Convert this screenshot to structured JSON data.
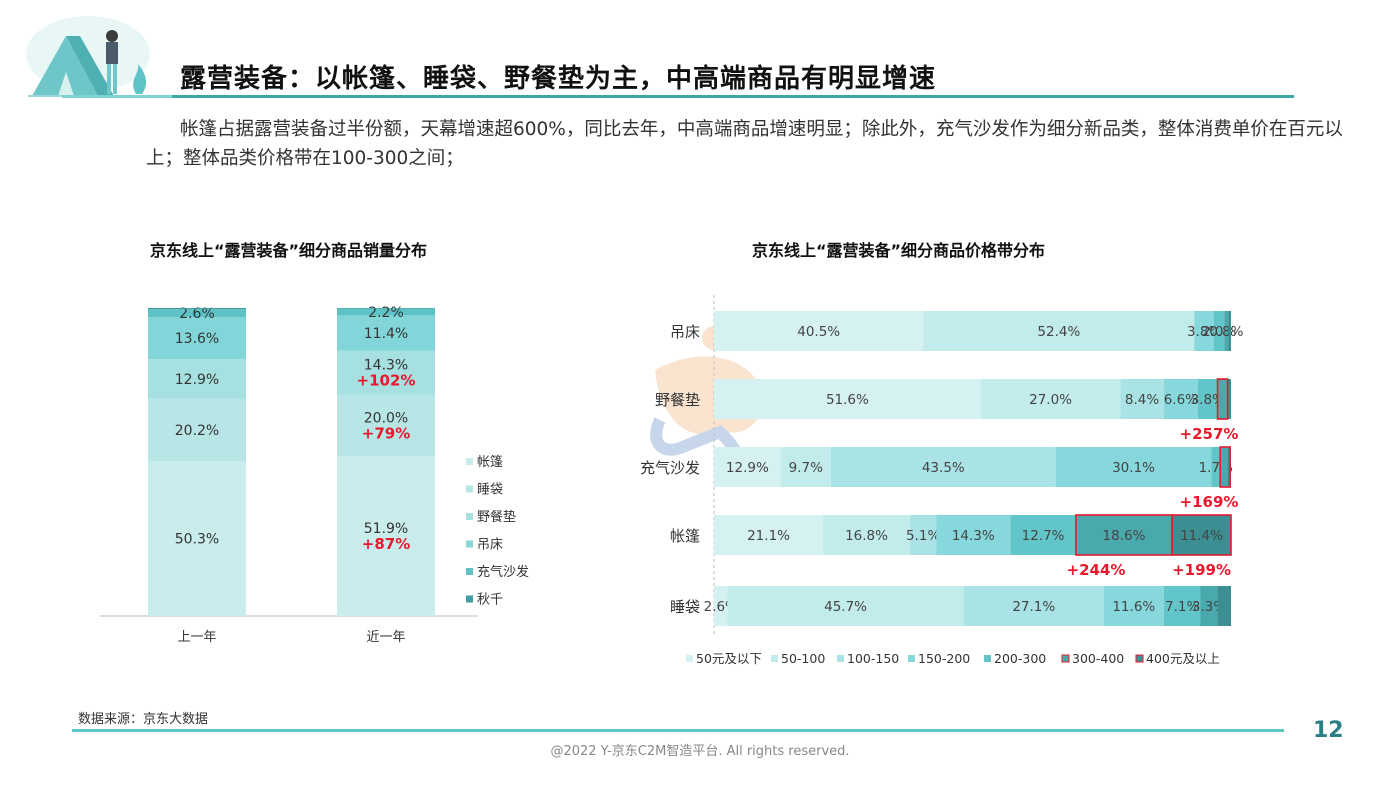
{
  "title": "露营装备：以帐篷、睡袋、野餐垫为主，中高端商品有明显增速",
  "intro": "帐篷占据露营装备过半份额，天幕增速超600%，同比去年，中高端商品增速明显；除此外，充气沙发作为细分新品类，整体消费单价在百元以上；整体品类价格带在100-300之间；",
  "source": "数据来源：京东大数据",
  "page_number": "12",
  "copyright": "@2022 Y-京东C2M智造平台. All rights reserved.",
  "colors": {
    "accent": "#3aa8a8",
    "growth": "#e8192c",
    "left_segments": [
      "#c9ecec",
      "#b8e6e7",
      "#a6e0e1",
      "#82d6d9",
      "#5ec3c7",
      "#3e9ea2"
    ],
    "right_segments": [
      "#d6f1f2",
      "#c2ebec",
      "#a9e3e5",
      "#86d8dc",
      "#62c5c9",
      "#4aa9ac",
      "#3b8e91"
    ]
  },
  "chart_data": [
    {
      "type": "bar",
      "stacked": true,
      "orientation": "vertical",
      "title": "京东线上“露营装备”细分商品销量分布",
      "categories": [
        "上一年",
        "近一年"
      ],
      "series": [
        {
          "name": "帐篷",
          "values": [
            50.3,
            51.9
          ],
          "labels": [
            "50.3%",
            "51.9%"
          ],
          "growth": [
            null,
            "+87%"
          ]
        },
        {
          "name": "睡袋",
          "values": [
            20.2,
            20.0
          ],
          "labels": [
            "20.2%",
            "20.0%"
          ],
          "growth": [
            null,
            "+79%"
          ]
        },
        {
          "name": "野餐垫",
          "values": [
            12.9,
            14.3
          ],
          "labels": [
            "12.9%",
            "14.3%"
          ],
          "growth": [
            null,
            "+102%"
          ]
        },
        {
          "name": "吊床",
          "values": [
            13.6,
            11.4
          ],
          "labels": [
            "13.6%",
            "11.4%"
          ],
          "growth": [
            null,
            null
          ]
        },
        {
          "name": "充气沙发",
          "values": [
            2.6,
            2.2
          ],
          "labels": [
            "2.6%",
            "2.2%"
          ],
          "growth": [
            null,
            null
          ]
        },
        {
          "name": "秋千",
          "values": [
            0.4,
            0.2
          ],
          "labels": [
            "",
            ""
          ],
          "growth": [
            null,
            null
          ]
        }
      ],
      "legend_position": "right"
    },
    {
      "type": "bar",
      "stacked": true,
      "orientation": "horizontal",
      "title": "京东线上“露营装备”细分商品价格带分布",
      "categories": [
        "吊床",
        "野餐垫",
        "充气沙发",
        "帐篷",
        "睡袋"
      ],
      "series": [
        {
          "name": "50元及以下",
          "values": [
            40.5,
            51.6,
            12.9,
            21.1,
            2.6
          ],
          "labels": [
            "40.5%",
            "51.6%",
            "12.9%",
            "21.1%",
            "2.6%"
          ]
        },
        {
          "name": "50-100",
          "values": [
            52.4,
            27.0,
            9.7,
            16.8,
            45.7
          ],
          "labels": [
            "52.4%",
            "27.0%",
            "9.7%",
            "16.8%",
            "45.7%"
          ]
        },
        {
          "name": "100-150",
          "values": [
            0.0,
            8.4,
            43.5,
            5.1,
            27.1
          ],
          "labels": [
            "",
            "8.4%",
            "43.5%",
            "5.1%",
            "27.1%"
          ]
        },
        {
          "name": "150-200",
          "values": [
            3.8,
            6.6,
            30.1,
            14.3,
            11.6
          ],
          "labels": [
            "3.8%",
            "6.6%",
            "30.1%",
            "14.3%",
            "11.6%"
          ]
        },
        {
          "name": "200-300",
          "values": [
            2.0,
            3.8,
            1.7,
            12.7,
            7.1
          ],
          "labels": [
            "2.0%",
            "3.8%",
            "1.7%",
            "12.7%",
            "7.1%"
          ]
        },
        {
          "name": "300-400",
          "values": [
            0.8,
            1.8,
            1.4,
            18.6,
            3.3
          ],
          "labels": [
            "0.8%",
            "",
            "",
            "18.6%",
            "3.3%"
          ]
        },
        {
          "name": "400元及以上",
          "values": [
            0.5,
            0.8,
            0.7,
            11.4,
            2.6
          ],
          "labels": [
            "",
            "",
            "",
            "11.4%",
            ""
          ]
        }
      ],
      "highlights": [
        {
          "category": "野餐垫",
          "series": "300-400",
          "growth": "+257%"
        },
        {
          "category": "充气沙发",
          "series": "300-400",
          "growth": "+169%"
        },
        {
          "category": "帐篷",
          "series": "300-400",
          "growth": "+244%"
        },
        {
          "category": "帐篷",
          "series": "400元及以上",
          "growth": "+199%"
        }
      ],
      "legend_position": "bottom"
    }
  ]
}
